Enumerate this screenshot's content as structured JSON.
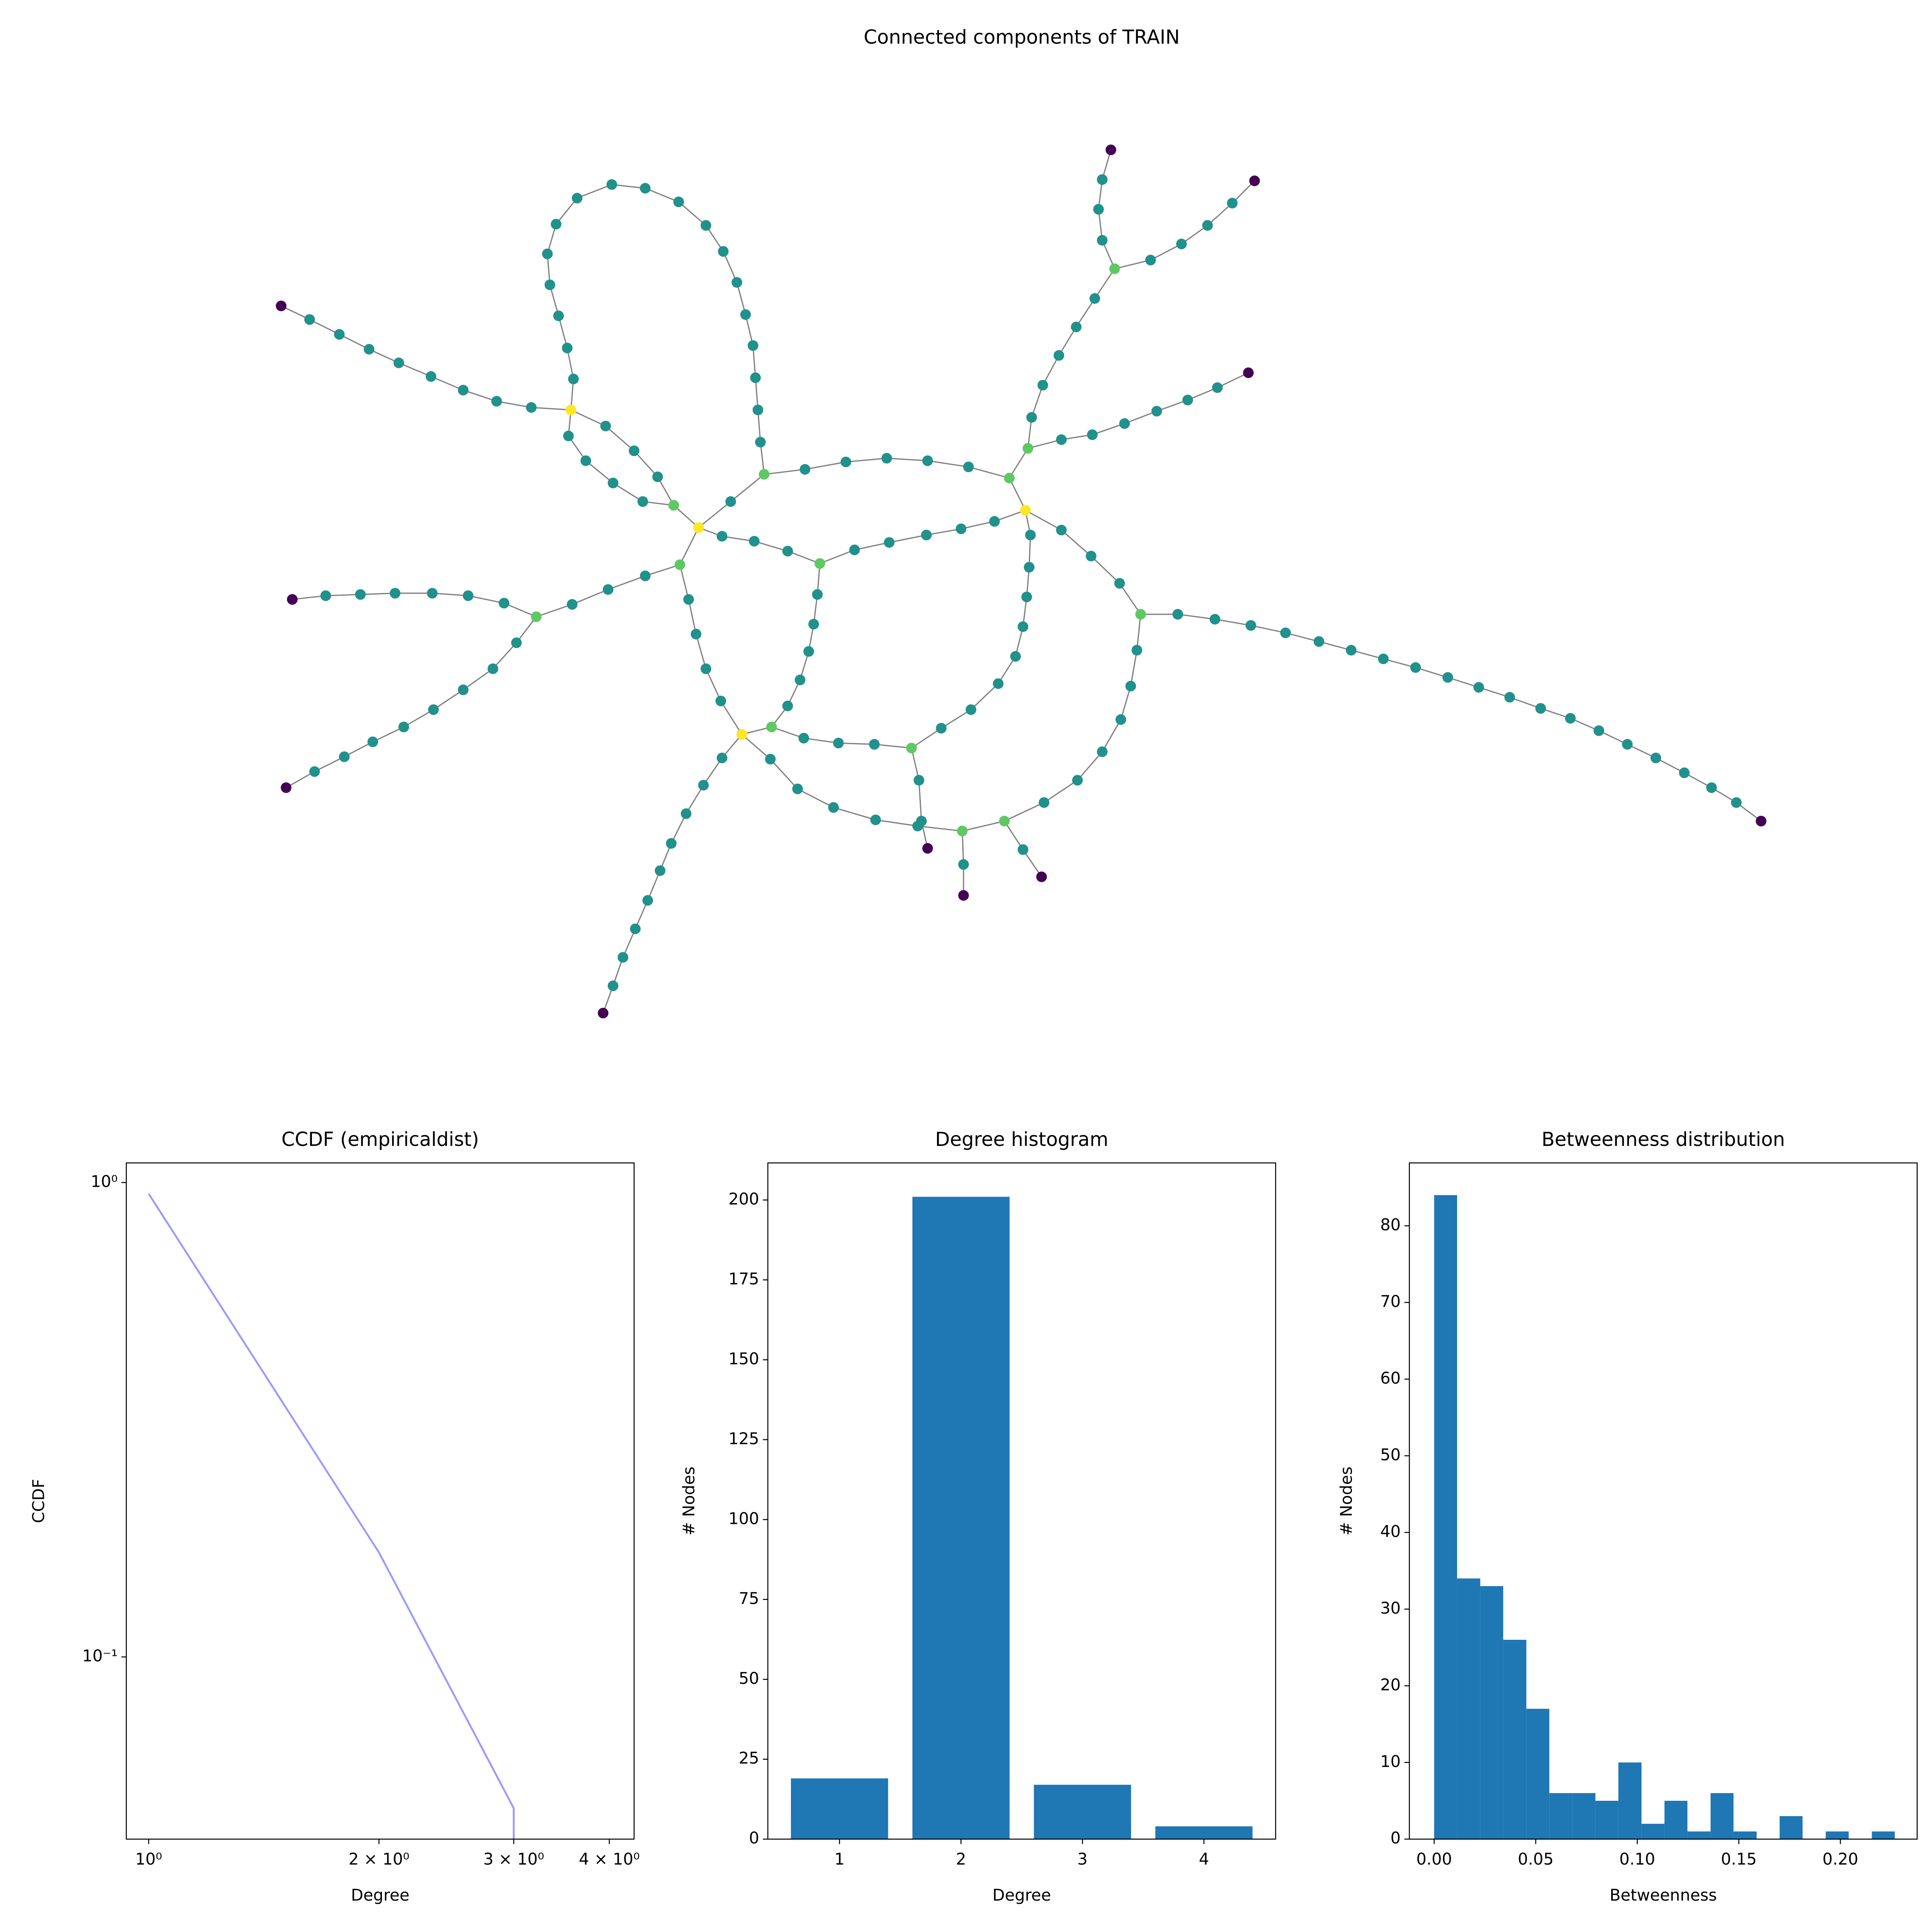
{
  "chart_data": [
    {
      "type": "network",
      "title": "Connected components of TRAIN",
      "node_colors": [
        "#440154",
        "#21918c",
        "#5ec962",
        "#fde725"
      ],
      "edge_color": "#808080"
    },
    {
      "type": "line",
      "title": "CCDF (empiricaldist)",
      "xlabel": "Degree",
      "ylabel": "CCDF",
      "x": [
        1,
        2,
        3,
        3
      ],
      "values": [
        0.947,
        0.166,
        0.048,
        0.0413
      ],
      "color": "#9999ff",
      "xlog": true,
      "ylog": true,
      "xlim": [
        0.935,
        4.31
      ],
      "ylim": [
        0.0413,
        1.1
      ],
      "xticks": [
        {
          "value": 1,
          "label": "10⁰"
        },
        {
          "value": 2,
          "label": "2 × 10⁰"
        },
        {
          "value": 3,
          "label": "3 × 10⁰"
        },
        {
          "value": 4,
          "label": "4 × 10⁰"
        }
      ],
      "yticks": [
        {
          "value": 1,
          "label": "10⁰"
        },
        {
          "value": 0.1,
          "label": "10⁻¹"
        }
      ]
    },
    {
      "type": "bar",
      "title": "Degree histogram",
      "xlabel": "Degree",
      "ylabel": "# Nodes",
      "x": [
        1,
        2,
        3,
        4
      ],
      "values": [
        19,
        201,
        17,
        4
      ],
      "color": "#1f77b4",
      "xlim": [
        0.41,
        4.59
      ],
      "ylim": [
        0,
        211.6
      ],
      "xticks": [
        1,
        2,
        3,
        4
      ],
      "yticks": [
        0,
        25,
        50,
        75,
        100,
        125,
        150,
        175,
        200
      ]
    },
    {
      "type": "histogram",
      "title": "Betweenness distribution",
      "xlabel": "Betweenness",
      "ylabel": "# Nodes",
      "bins": [
        0,
        0.0113,
        0.0227,
        0.034,
        0.0454,
        0.0567,
        0.068,
        0.0794,
        0.0907,
        0.1021,
        0.1134,
        0.1247,
        0.1361,
        0.1474,
        0.1588,
        0.1701,
        0.1814,
        0.1928,
        0.2041,
        0.2155,
        0.2268
      ],
      "values": [
        84,
        34,
        33,
        26,
        17,
        6,
        6,
        5,
        10,
        2,
        5,
        1,
        6,
        1,
        0,
        3,
        0,
        1,
        0,
        1
      ],
      "color": "#1f77b4",
      "xlim": [
        -0.0122,
        0.2378
      ],
      "ylim": [
        0,
        88.2
      ],
      "xticks": [
        {
          "value": 0,
          "label": "0.00"
        },
        0.05,
        {
          "value": 0.1,
          "label": "0.10"
        },
        0.15,
        {
          "value": 0.2,
          "label": "0.20"
        }
      ],
      "yticks": [
        0,
        10,
        20,
        30,
        40,
        50,
        60,
        70,
        80
      ]
    }
  ]
}
